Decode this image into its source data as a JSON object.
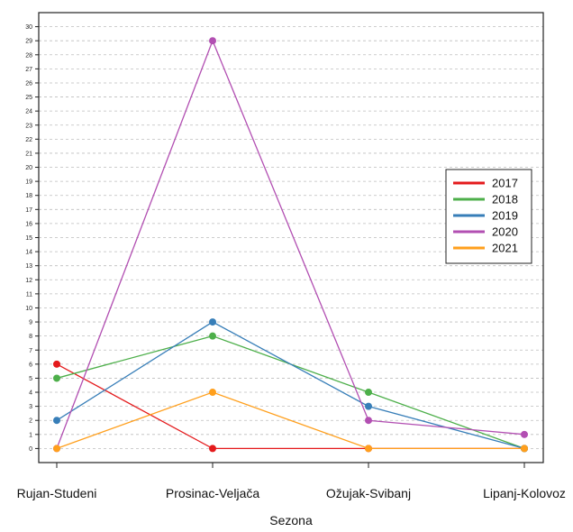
{
  "chart_data": {
    "type": "line",
    "title": "",
    "xlabel": "Sezona",
    "ylabel": "",
    "categories": [
      "Rujan-Studeni",
      "Prosinac-Veljača",
      "Ožujak-Svibanj",
      "Lipanj-Kolovoz"
    ],
    "y_ticks": [
      "0",
      "1",
      "2",
      "3",
      "4",
      "5",
      "6",
      "7",
      "8",
      "9",
      "10",
      "11",
      "12",
      "13",
      "14",
      "15",
      "16",
      "17",
      "18",
      "19",
      "20",
      "21",
      "22",
      "23",
      "24",
      "25",
      "26",
      "27",
      "28",
      "29",
      "30"
    ],
    "ylim": [
      -1,
      31
    ],
    "grid": "horizontal dashed",
    "legend_position": "right",
    "series": [
      {
        "name": "2017",
        "color": "#e41a1c",
        "values": [
          6,
          0,
          0,
          0
        ]
      },
      {
        "name": "2018",
        "color": "#4daf4a",
        "values": [
          5,
          8,
          4,
          0
        ]
      },
      {
        "name": "2019",
        "color": "#377eb8",
        "values": [
          2,
          9,
          3,
          0
        ]
      },
      {
        "name": "2020",
        "color": "#b24fb2",
        "values": [
          0,
          29,
          2,
          1
        ]
      },
      {
        "name": "2021",
        "color": "#ff9f1c",
        "values": [
          0,
          4,
          0,
          0
        ]
      }
    ]
  }
}
